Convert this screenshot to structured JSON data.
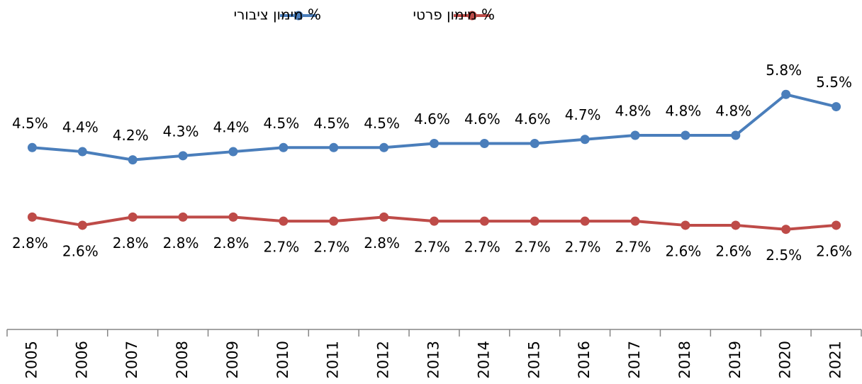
{
  "chart_data": {
    "type": "line",
    "categories": [
      "2005",
      "2006",
      "2007",
      "2008",
      "2009",
      "2010",
      "2011",
      "2012",
      "2013",
      "2014",
      "2015",
      "2016",
      "2017",
      "2018",
      "2019",
      "2020",
      "2021"
    ],
    "series": [
      {
        "name": "% מימון ציבורי",
        "color": "#4a7ebb",
        "values": [
          4.5,
          4.4,
          4.2,
          4.3,
          4.4,
          4.5,
          4.5,
          4.5,
          4.6,
          4.6,
          4.6,
          4.7,
          4.8,
          4.8,
          4.8,
          5.8,
          5.5
        ],
        "value_labels": [
          "4.5%",
          "4.4%",
          "4.2%",
          "4.3%",
          "4.4%",
          "4.5%",
          "4.5%",
          "4.5%",
          "4.6%",
          "4.6%",
          "4.6%",
          "4.7%",
          "4.8%",
          "4.8%",
          "4.8%",
          "5.8%",
          "5.5%"
        ]
      },
      {
        "name": "% מימון פרטי",
        "color": "#be4b48",
        "values": [
          2.8,
          2.6,
          2.8,
          2.8,
          2.8,
          2.7,
          2.7,
          2.8,
          2.7,
          2.7,
          2.7,
          2.7,
          2.7,
          2.6,
          2.6,
          2.5,
          2.6
        ],
        "value_labels": [
          "2.8%",
          "2.6%",
          "2.8%",
          "2.8%",
          "2.8%",
          "2.7%",
          "2.7%",
          "2.8%",
          "2.7%",
          "2.7%",
          "2.7%",
          "2.7%",
          "2.7%",
          "2.6%",
          "2.6%",
          "2.5%",
          "2.6%"
        ]
      }
    ],
    "ylim": [
      0,
      7
    ],
    "legend": "top"
  }
}
